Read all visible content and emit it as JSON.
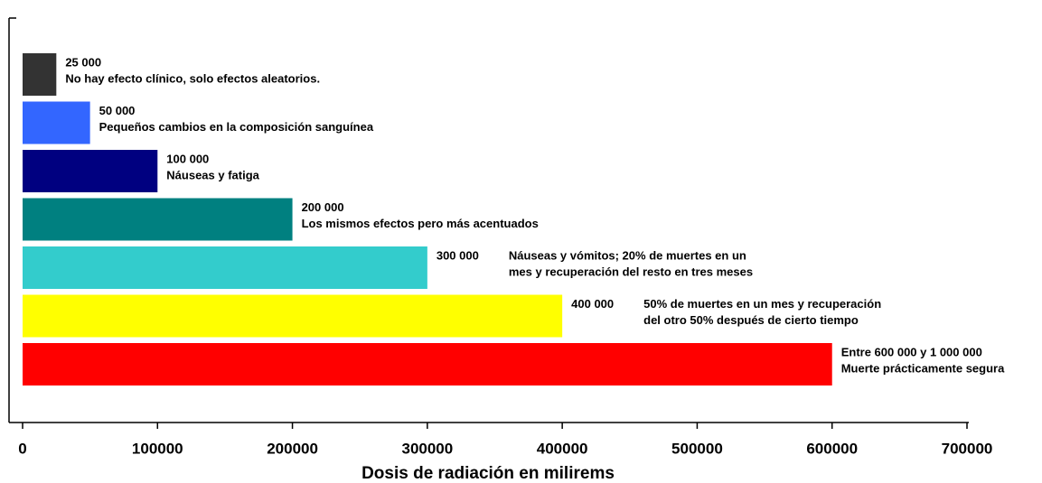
{
  "chart_data": {
    "type": "barh",
    "xlabel": "Dosis de radiación en milirems",
    "values": [
      25000,
      50000,
      100000,
      200000,
      300000,
      400000,
      600000
    ],
    "value_labels": [
      "25 000",
      "50 000",
      "100 000",
      "200 000",
      "300 000",
      "400 000",
      "Entre 600 000 y 1 000 000"
    ],
    "descriptions": [
      [
        "No hay efecto clínico, solo efectos aleatorios."
      ],
      [
        "Pequeños cambios en la composición sanguínea"
      ],
      [
        "Náuseas y fatiga"
      ],
      [
        "Los mismos efectos pero más acentuados"
      ],
      [
        "Náuseas y vómitos; 20% de muertes en un",
        "mes y recuperación del resto en tres meses"
      ],
      [
        "50% de muertes en un mes y recuperación",
        "del otro 50% después de cierto tiempo"
      ],
      [
        "Muerte prácticamente segura"
      ]
    ],
    "colors": [
      "#333333",
      "#3366ff",
      "#000080",
      "#008080",
      "#33cccc",
      "#ffff00",
      "#ff0000"
    ],
    "xlim": [
      0,
      700000
    ],
    "xticks": [
      0,
      100000,
      200000,
      300000,
      400000,
      500000,
      600000,
      700000
    ]
  }
}
